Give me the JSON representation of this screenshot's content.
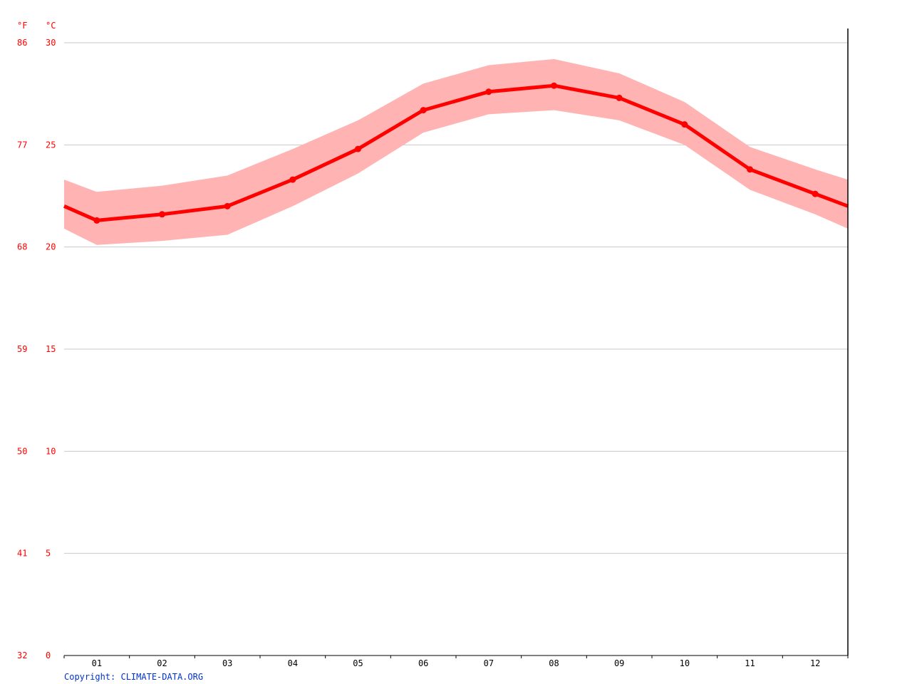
{
  "colors": {
    "line": "#ff0000",
    "band": "#ffb3b3",
    "axis_text_temp": "#ff0000",
    "axis_text_month": "#000000",
    "grid": "#c8c8c8",
    "copyright": "#0033cc"
  },
  "units": {
    "fahrenheit": "°F",
    "celsius": "°C"
  },
  "copyright": "Copyright: CLIMATE-DATA.ORG",
  "chart_data": {
    "type": "line",
    "title": "",
    "xlabel": "",
    "ylabel": "",
    "grid": true,
    "ylim": [
      0,
      30
    ],
    "y_ticks_c": [
      "30",
      "25",
      "20",
      "15",
      "10",
      "5",
      "0"
    ],
    "y_ticks_f": [
      "86",
      "77",
      "68",
      "59",
      "50",
      "41",
      "32"
    ],
    "categories": [
      "01",
      "02",
      "03",
      "04",
      "05",
      "06",
      "07",
      "08",
      "09",
      "10",
      "11",
      "12"
    ],
    "series": [
      {
        "values": [
          21.3,
          21.6,
          22.0,
          23.3,
          24.8,
          26.7,
          27.6,
          27.9,
          27.3,
          26.0,
          23.8,
          22.6
        ]
      }
    ],
    "band_upper": [
      22.7,
      23.0,
      23.5,
      24.8,
      26.2,
      28.0,
      28.9,
      29.2,
      28.5,
      27.1,
      24.9,
      23.8
    ],
    "band_lower": [
      20.1,
      20.3,
      20.6,
      22.0,
      23.6,
      25.6,
      26.5,
      26.7,
      26.2,
      25.0,
      22.8,
      21.6
    ],
    "line_start": 22.0,
    "line_end": 22.0,
    "band_start": [
      23.3,
      20.9
    ],
    "band_end": [
      23.3,
      20.9
    ]
  }
}
